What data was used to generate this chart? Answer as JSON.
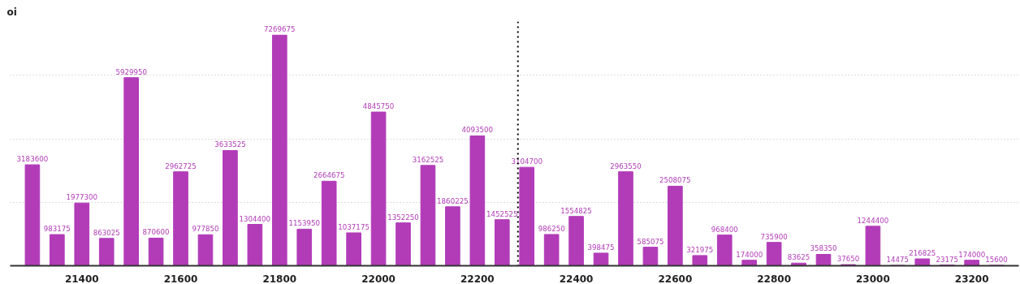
{
  "chart_data": {
    "type": "bar",
    "ylabel": "oi",
    "x": [
      21300,
      21350,
      21400,
      21450,
      21500,
      21550,
      21600,
      21650,
      21700,
      21750,
      21800,
      21850,
      21900,
      21950,
      22000,
      22050,
      22100,
      22150,
      22200,
      22250,
      22300,
      22350,
      22400,
      22450,
      22500,
      22550,
      22600,
      22650,
      22700,
      22750,
      22800,
      22850,
      22900,
      22950,
      23000,
      23050,
      23100,
      23150,
      23200,
      23250
    ],
    "values": [
      3183600,
      983175,
      1977300,
      863025,
      5929950,
      870600,
      2962725,
      977850,
      3633525,
      1304400,
      7269675,
      1153950,
      2664675,
      1037175,
      4845750,
      1352250,
      3162525,
      1860225,
      4093500,
      1452525,
      3104700,
      986250,
      1554825,
      398475,
      2963550,
      585075,
      2508075,
      321975,
      968400,
      174000,
      735900,
      83625,
      358350,
      37650,
      1244400,
      14475,
      216825,
      23175,
      174000,
      15600
    ],
    "color": "#b23cb8",
    "xlim": [
      21255,
      23295
    ],
    "xticks": [
      21400,
      21600,
      21800,
      22000,
      22200,
      22400,
      22600,
      22800,
      23000,
      23200
    ],
    "ylim": [
      0,
      7700000
    ],
    "yticks": [
      0,
      2000000,
      4000000,
      6000000
    ],
    "tick_labels": "x",
    "grid": "y",
    "data_labels": true,
    "ref_lines": [
      {
        "axis": "x",
        "value": 22282,
        "color": "#000000",
        "line_style": "dotted"
      }
    ]
  }
}
